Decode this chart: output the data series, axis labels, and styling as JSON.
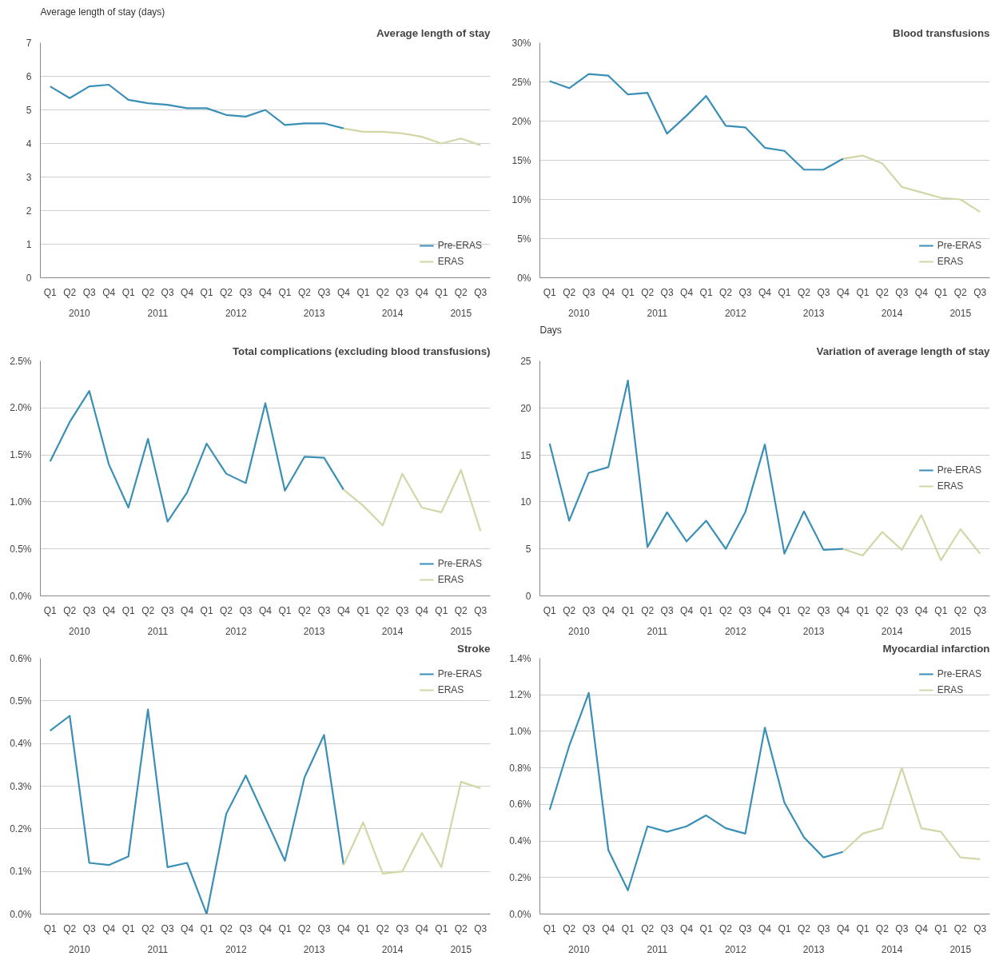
{
  "chart_data": [
    {
      "type": "line",
      "title": "Average length of stay",
      "ylabel": "Average length of stay (days)",
      "categories": [
        "Q1",
        "Q2",
        "Q3",
        "Q4",
        "Q1",
        "Q2",
        "Q3",
        "Q4",
        "Q1",
        "Q2",
        "Q3",
        "Q4",
        "Q1",
        "Q2",
        "Q3",
        "Q4",
        "Q1",
        "Q2",
        "Q3",
        "Q4",
        "Q1",
        "Q2",
        "Q3"
      ],
      "annotations": [
        "2010",
        "2011",
        "2012",
        "2013",
        "2014",
        "2015"
      ],
      "ylim": [
        0,
        7
      ],
      "yticks": [
        0,
        1,
        2,
        3,
        4,
        5,
        6,
        7
      ],
      "grid": "y",
      "legend": "bottom right",
      "series": [
        {
          "name": "Pre-ERAS",
          "color": "#3a8fb7",
          "values": [
            5.7,
            5.35,
            5.7,
            5.75,
            5.3,
            5.2,
            5.15,
            5.05,
            5.05,
            4.85,
            4.8,
            5.0,
            4.55,
            4.6,
            4.6,
            4.45,
            null,
            null,
            null,
            null,
            null,
            null,
            null
          ]
        },
        {
          "name": "ERAS",
          "color": "#d3d6a6",
          "values": [
            null,
            null,
            null,
            null,
            null,
            null,
            null,
            null,
            null,
            null,
            null,
            null,
            null,
            null,
            null,
            4.45,
            4.35,
            4.35,
            4.3,
            4.2,
            4.0,
            4.15,
            3.95
          ]
        }
      ]
    },
    {
      "type": "line",
      "title": "Blood transfusions",
      "categories": [
        "Q1",
        "Q2",
        "Q3",
        "Q4",
        "Q1",
        "Q2",
        "Q3",
        "Q4",
        "Q1",
        "Q2",
        "Q3",
        "Q4",
        "Q1",
        "Q2",
        "Q3",
        "Q4",
        "Q1",
        "Q2",
        "Q3",
        "Q4",
        "Q1",
        "Q2",
        "Q3"
      ],
      "annotations": [
        "2010",
        "2011",
        "2012",
        "2013",
        "2014",
        "2015"
      ],
      "ylim": [
        0,
        30
      ],
      "yticks": [
        {
          "value": 0,
          "label": "0%"
        },
        {
          "value": 5,
          "label": "5%"
        },
        {
          "value": 10,
          "label": "10%"
        },
        {
          "value": 15,
          "label": "15%"
        },
        {
          "value": 20,
          "label": "20%"
        },
        {
          "value": 25,
          "label": "25%"
        },
        {
          "value": 30,
          "label": "30%"
        }
      ],
      "grid": "y",
      "legend": "bottom right",
      "series": [
        {
          "name": "Pre-ERAS",
          "color": "#3a8fb7",
          "values": [
            25.1,
            24.2,
            26.0,
            25.8,
            23.4,
            23.6,
            18.4,
            20.7,
            23.2,
            19.4,
            19.2,
            16.6,
            16.2,
            13.8,
            13.8,
            15.2,
            null,
            null,
            null,
            null,
            null,
            null,
            null
          ]
        },
        {
          "name": "ERAS",
          "color": "#d3d6a6",
          "values": [
            null,
            null,
            null,
            null,
            null,
            null,
            null,
            null,
            null,
            null,
            null,
            null,
            null,
            null,
            null,
            15.2,
            15.6,
            14.6,
            11.6,
            10.9,
            10.2,
            10.0,
            8.4
          ]
        }
      ]
    },
    {
      "type": "line",
      "title": "Total complications (excluding blood transfusions)",
      "categories": [
        "Q1",
        "Q2",
        "Q3",
        "Q4",
        "Q1",
        "Q2",
        "Q3",
        "Q4",
        "Q1",
        "Q2",
        "Q3",
        "Q4",
        "Q1",
        "Q2",
        "Q3",
        "Q4",
        "Q1",
        "Q2",
        "Q3",
        "Q4",
        "Q1",
        "Q2",
        "Q3"
      ],
      "annotations": [
        "2010",
        "2011",
        "2012",
        "2013",
        "2014",
        "2015"
      ],
      "ylim": [
        0,
        2.5
      ],
      "yticks": [
        {
          "value": 0,
          "label": "0.0%"
        },
        {
          "value": 0.5,
          "label": "0.5%"
        },
        {
          "value": 1.0,
          "label": "1.0%"
        },
        {
          "value": 1.5,
          "label": "1.5%"
        },
        {
          "value": 2.0,
          "label": "2.0%"
        },
        {
          "value": 2.5,
          "label": "2.5%"
        }
      ],
      "grid": "y",
      "legend": "bottom right",
      "series": [
        {
          "name": "Pre-ERAS",
          "color": "#3a8fb7",
          "values": [
            1.43,
            1.85,
            2.18,
            1.4,
            0.94,
            1.67,
            0.79,
            1.1,
            1.62,
            1.3,
            1.2,
            2.05,
            1.12,
            1.48,
            1.47,
            1.13,
            null,
            null,
            null,
            null,
            null,
            null,
            null
          ]
        },
        {
          "name": "ERAS",
          "color": "#d3d6a6",
          "values": [
            null,
            null,
            null,
            null,
            null,
            null,
            null,
            null,
            null,
            null,
            null,
            null,
            null,
            null,
            null,
            1.13,
            0.96,
            0.75,
            1.3,
            0.94,
            0.89,
            1.34,
            0.69
          ]
        }
      ]
    },
    {
      "type": "line",
      "title": "Variation of average length of stay",
      "ylabel": "Days",
      "categories": [
        "Q1",
        "Q2",
        "Q3",
        "Q4",
        "Q1",
        "Q2",
        "Q3",
        "Q4",
        "Q1",
        "Q2",
        "Q3",
        "Q4",
        "Q1",
        "Q2",
        "Q3",
        "Q4",
        "Q1",
        "Q2",
        "Q3",
        "Q4",
        "Q1",
        "Q2",
        "Q3"
      ],
      "annotations": [
        "2010",
        "2011",
        "2012",
        "2013",
        "2014",
        "2015"
      ],
      "ylim": [
        0,
        25
      ],
      "yticks": [
        0,
        5,
        10,
        15,
        20,
        25
      ],
      "grid": "y",
      "legend": "right",
      "series": [
        {
          "name": "Pre-ERAS",
          "color": "#3a8fb7",
          "values": [
            16.2,
            8.0,
            13.1,
            13.7,
            22.9,
            5.2,
            8.9,
            5.8,
            8.0,
            5.0,
            8.9,
            16.1,
            4.5,
            9.0,
            4.9,
            5.0,
            null,
            null,
            null,
            null,
            null,
            null,
            null
          ]
        },
        {
          "name": "ERAS",
          "color": "#d3d6a6",
          "values": [
            null,
            null,
            null,
            null,
            null,
            null,
            null,
            null,
            null,
            null,
            null,
            null,
            null,
            null,
            null,
            5.0,
            4.3,
            6.8,
            4.9,
            8.6,
            3.8,
            7.1,
            4.5
          ]
        }
      ]
    },
    {
      "type": "line",
      "title": "Stroke",
      "categories": [
        "Q1",
        "Q2",
        "Q3",
        "Q4",
        "Q1",
        "Q2",
        "Q3",
        "Q4",
        "Q1",
        "Q2",
        "Q3",
        "Q4",
        "Q1",
        "Q2",
        "Q3",
        "Q4",
        "Q1",
        "Q2",
        "Q3",
        "Q4",
        "Q1",
        "Q2",
        "Q3"
      ],
      "annotations": [
        "2010",
        "2011",
        "2012",
        "2013",
        "2014",
        "2015"
      ],
      "ylim": [
        0,
        0.6
      ],
      "yticks": [
        {
          "value": 0,
          "label": "0.0%"
        },
        {
          "value": 0.1,
          "label": "0.1%"
        },
        {
          "value": 0.2,
          "label": "0.2%"
        },
        {
          "value": 0.3,
          "label": "0.3%"
        },
        {
          "value": 0.4,
          "label": "0.4%"
        },
        {
          "value": 0.5,
          "label": "0.5%"
        },
        {
          "value": 0.6,
          "label": "0.6%"
        }
      ],
      "grid": "y",
      "legend": "top right",
      "series": [
        {
          "name": "Pre-ERAS",
          "color": "#3a8fb7",
          "values": [
            0.43,
            0.465,
            0.12,
            0.115,
            0.135,
            0.48,
            0.11,
            0.12,
            0.0,
            0.235,
            0.325,
            0.225,
            0.125,
            0.32,
            0.42,
            0.115,
            null,
            null,
            null,
            null,
            null,
            null,
            null
          ]
        },
        {
          "name": "ERAS",
          "color": "#d3d6a6",
          "values": [
            null,
            null,
            null,
            null,
            null,
            null,
            null,
            null,
            null,
            null,
            null,
            null,
            null,
            null,
            null,
            0.115,
            0.215,
            0.095,
            0.1,
            0.19,
            0.11,
            0.31,
            0.295
          ]
        }
      ]
    },
    {
      "type": "line",
      "title": "Myocardial infarction",
      "categories": [
        "Q1",
        "Q2",
        "Q3",
        "Q4",
        "Q1",
        "Q2",
        "Q3",
        "Q4",
        "Q1",
        "Q2",
        "Q3",
        "Q4",
        "Q1",
        "Q2",
        "Q3",
        "Q4",
        "Q1",
        "Q2",
        "Q3",
        "Q4",
        "Q1",
        "Q2",
        "Q3"
      ],
      "annotations": [
        "2010",
        "2011",
        "2012",
        "2013",
        "2014",
        "2015"
      ],
      "ylim": [
        0,
        1.4
      ],
      "yticks": [
        {
          "value": 0,
          "label": "0.0%"
        },
        {
          "value": 0.2,
          "label": "0.2%"
        },
        {
          "value": 0.4,
          "label": "0.4%"
        },
        {
          "value": 0.6,
          "label": "0.6%"
        },
        {
          "value": 0.8,
          "label": "0.8%"
        },
        {
          "value": 1.0,
          "label": "1.0%"
        },
        {
          "value": 1.2,
          "label": "1.2%"
        },
        {
          "value": 1.4,
          "label": "1.4%"
        }
      ],
      "grid": "y",
      "legend": "top right",
      "series": [
        {
          "name": "Pre-ERAS",
          "color": "#3a8fb7",
          "values": [
            0.57,
            0.92,
            1.21,
            0.35,
            0.13,
            0.48,
            0.45,
            0.48,
            0.54,
            0.47,
            0.44,
            1.02,
            0.61,
            0.42,
            0.31,
            0.34,
            null,
            null,
            null,
            null,
            null,
            null,
            null
          ]
        },
        {
          "name": "ERAS",
          "color": "#d3d6a6",
          "values": [
            null,
            null,
            null,
            null,
            null,
            null,
            null,
            null,
            null,
            null,
            null,
            null,
            null,
            null,
            null,
            0.34,
            0.44,
            0.47,
            0.8,
            0.47,
            0.45,
            0.31,
            0.3
          ]
        }
      ]
    }
  ]
}
